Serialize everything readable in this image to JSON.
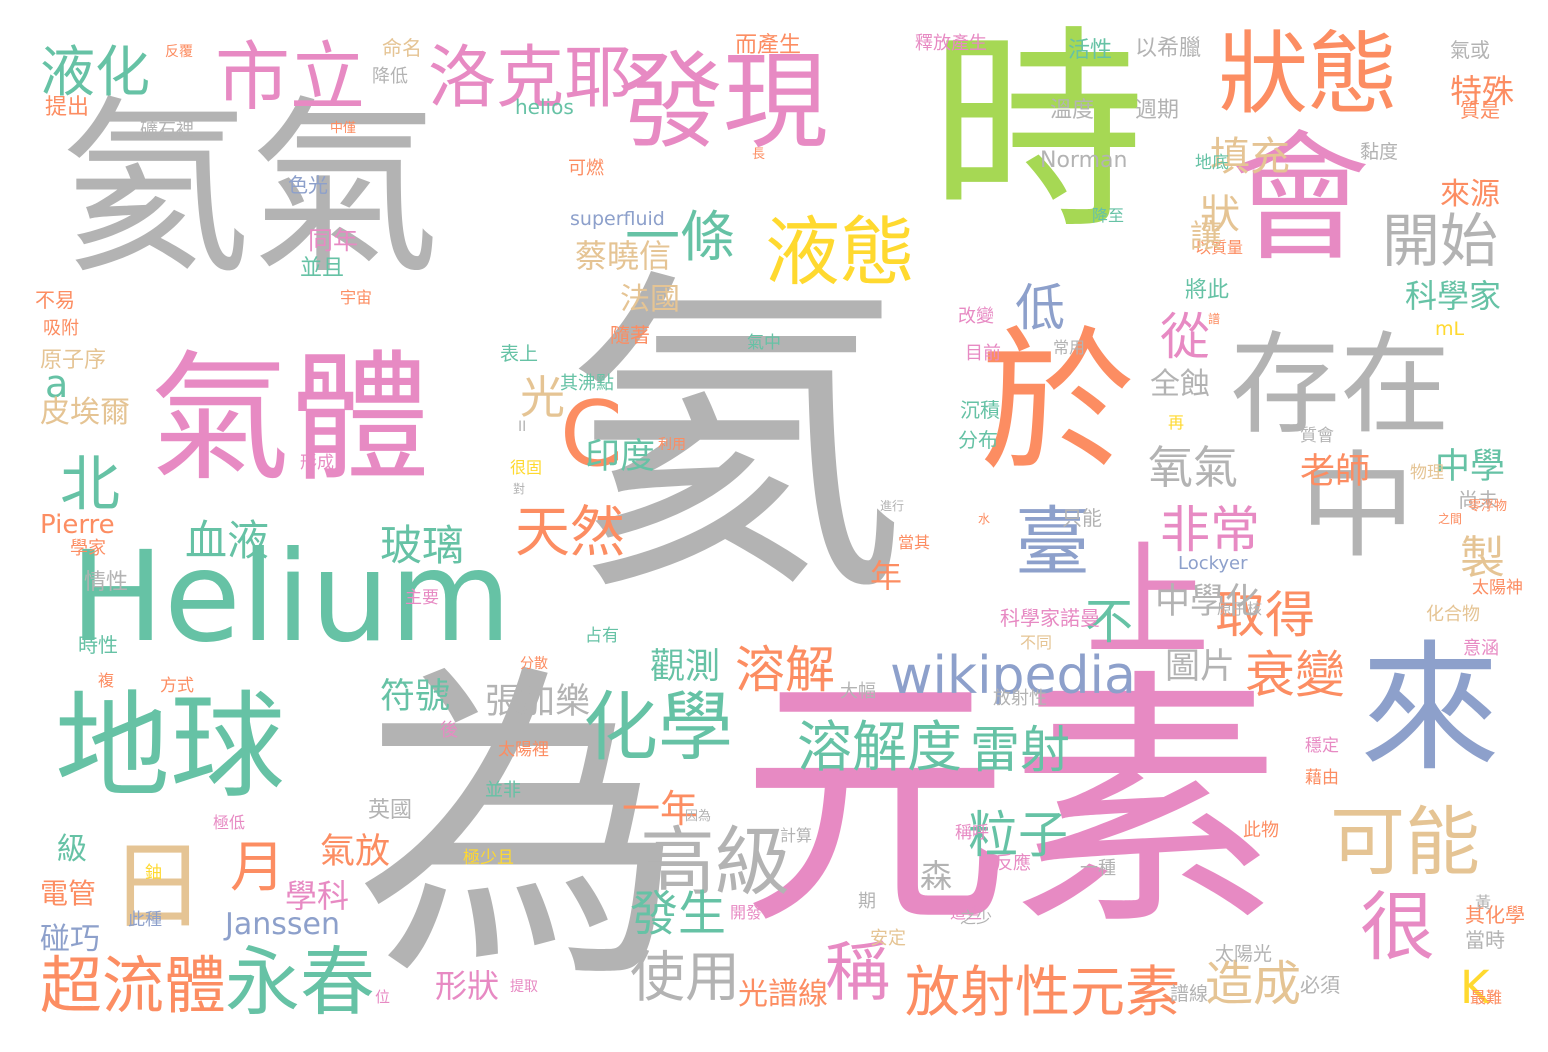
{
  "palette": {
    "gray": "#b3b3b3",
    "pink": "#e78ac3",
    "green": "#a6d854",
    "teal": "#66c2a5",
    "orange": "#fc8d62",
    "blue": "#8da0cb",
    "yellow": "#ffd92f",
    "tan": "#e5c494"
  },
  "words": [
    {
      "text": "氦"
    },
    {
      "text": "氦氣"
    },
    {
      "text": "時"
    },
    {
      "text": "發現"
    },
    {
      "text": "狀態"
    },
    {
      "text": "會"
    },
    {
      "text": "氣體"
    },
    {
      "text": "Helium"
    },
    {
      "text": "於"
    },
    {
      "text": "存在"
    },
    {
      "text": "中"
    },
    {
      "text": "C"
    },
    {
      "text": "地球"
    },
    {
      "text": "為"
    },
    {
      "text": "元素"
    },
    {
      "text": "來"
    },
    {
      "text": "上"
    },
    {
      "text": "臺"
    },
    {
      "text": "液態"
    },
    {
      "text": "市立"
    },
    {
      "text": "洛克耶"
    },
    {
      "text": "液化"
    },
    {
      "text": "一條"
    },
    {
      "text": "開始"
    },
    {
      "text": "化學"
    },
    {
      "text": "wikipedia"
    },
    {
      "text": "日"
    },
    {
      "text": "高級"
    },
    {
      "text": "可能"
    },
    {
      "text": "很"
    },
    {
      "text": "永春"
    },
    {
      "text": "超流體"
    },
    {
      "text": "放射性元素"
    },
    {
      "text": "溶解度"
    },
    {
      "text": "雷射"
    },
    {
      "text": "北"
    },
    {
      "text": "天然"
    },
    {
      "text": "非常"
    },
    {
      "text": "從"
    },
    {
      "text": "低"
    },
    {
      "text": "血液"
    },
    {
      "text": "玻璃"
    },
    {
      "text": "取得"
    },
    {
      "text": "衰變"
    },
    {
      "text": "溶解"
    },
    {
      "text": "氧氣"
    },
    {
      "text": "粒子"
    },
    {
      "text": "稱"
    },
    {
      "text": "使用"
    },
    {
      "text": "發生"
    },
    {
      "text": "造成"
    },
    {
      "text": "月"
    },
    {
      "text": "填充"
    },
    {
      "text": "狀"
    },
    {
      "text": "不"
    },
    {
      "text": "a"
    },
    {
      "text": "光"
    },
    {
      "text": "製"
    },
    {
      "text": "K"
    },
    {
      "text": "中學化"
    },
    {
      "text": "圖片"
    },
    {
      "text": "觀測"
    },
    {
      "text": "張加樂"
    },
    {
      "text": "符號"
    },
    {
      "text": "印度"
    },
    {
      "text": "中學"
    },
    {
      "text": "老師"
    },
    {
      "text": "全蝕"
    },
    {
      "text": "蔡曉信"
    },
    {
      "text": "法國"
    },
    {
      "text": "科學家"
    },
    {
      "text": "特殊"
    },
    {
      "text": "來源"
    },
    {
      "text": "一年"
    },
    {
      "text": "年"
    },
    {
      "text": "氣放"
    },
    {
      "text": "學科"
    },
    {
      "text": "Janssen"
    },
    {
      "text": "森"
    },
    {
      "text": "英國"
    },
    {
      "text": "級"
    },
    {
      "text": "電管"
    },
    {
      "text": "碰巧"
    },
    {
      "text": "形狀"
    },
    {
      "text": "光譜線"
    },
    {
      "text": "皮埃爾"
    },
    {
      "text": "Pierre"
    },
    {
      "text": "提出"
    },
    {
      "text": "礦石裡"
    },
    {
      "text": "helios"
    },
    {
      "text": "Norman"
    },
    {
      "text": "superfluid"
    },
    {
      "text": "Lockyer"
    },
    {
      "text": "命名"
    },
    {
      "text": "降低"
    },
    {
      "text": "而產生"
    },
    {
      "text": "釋放產生"
    },
    {
      "text": "活性"
    },
    {
      "text": "以希臘"
    },
    {
      "text": "氣或"
    },
    {
      "text": "溫度"
    },
    {
      "text": "週期"
    },
    {
      "text": "質是"
    },
    {
      "text": "黏度"
    },
    {
      "text": "地底"
    },
    {
      "text": "色光"
    },
    {
      "text": "同年"
    },
    {
      "text": "並且"
    },
    {
      "text": "改變"
    },
    {
      "text": "將此"
    },
    {
      "text": "以質量"
    },
    {
      "text": "降至"
    },
    {
      "text": "讓"
    },
    {
      "text": "不易"
    },
    {
      "text": "宇宙"
    },
    {
      "text": "隨著"
    },
    {
      "text": "表上"
    },
    {
      "text": "目前"
    },
    {
      "text": "常用"
    },
    {
      "text": "mL"
    },
    {
      "text": "原子序"
    },
    {
      "text": "其沸點"
    },
    {
      "text": "氣中"
    },
    {
      "text": "分布"
    },
    {
      "text": "沉積"
    },
    {
      "text": "質會"
    },
    {
      "text": "尚未"
    },
    {
      "text": "物理"
    },
    {
      "text": "形成"
    },
    {
      "text": "利用"
    },
    {
      "text": "只能"
    },
    {
      "text": "情性"
    },
    {
      "text": "主要"
    },
    {
      "text": "時性"
    },
    {
      "text": "方式"
    },
    {
      "text": "分散"
    },
    {
      "text": "占有"
    },
    {
      "text": "大幅"
    },
    {
      "text": "科學家諾曼"
    },
    {
      "text": "不同"
    },
    {
      "text": "原子核"
    },
    {
      "text": "化合物"
    },
    {
      "text": "意涵"
    },
    {
      "text": "太陽神"
    },
    {
      "text": "放射性"
    },
    {
      "text": "太陽裡"
    },
    {
      "text": "並非"
    },
    {
      "text": "後"
    },
    {
      "text": "穩定"
    },
    {
      "text": "藉由"
    },
    {
      "text": "極低"
    },
    {
      "text": "因為"
    },
    {
      "text": "計算"
    },
    {
      "text": "稱呼"
    },
    {
      "text": "此物"
    },
    {
      "text": "反應"
    },
    {
      "text": "一種"
    },
    {
      "text": "極少且"
    },
    {
      "text": "鈾"
    },
    {
      "text": "此種"
    },
    {
      "text": "開發"
    },
    {
      "text": "期"
    },
    {
      "text": "這些"
    },
    {
      "text": "安定"
    },
    {
      "text": "太陽光"
    },
    {
      "text": "其化學"
    },
    {
      "text": "當時"
    },
    {
      "text": "最難"
    },
    {
      "text": "位"
    },
    {
      "text": "譜線"
    },
    {
      "text": "必須"
    },
    {
      "text": "提取"
    },
    {
      "text": "學家"
    },
    {
      "text": "反覆"
    },
    {
      "text": "中僅"
    },
    {
      "text": "長"
    },
    {
      "text": "可燃"
    },
    {
      "text": "譜"
    },
    {
      "text": "吸附"
    },
    {
      "text": "零浮物"
    },
    {
      "text": "之間"
    },
    {
      "text": "進行"
    },
    {
      "text": "水"
    },
    {
      "text": "當其"
    },
    {
      "text": "再"
    },
    {
      "text": "II"
    },
    {
      "text": "很固"
    },
    {
      "text": "對"
    },
    {
      "text": "複"
    },
    {
      "text": "之少"
    },
    {
      "text": "黃"
    },
    {
      "text": "L大氣層"
    }
  ]
}
